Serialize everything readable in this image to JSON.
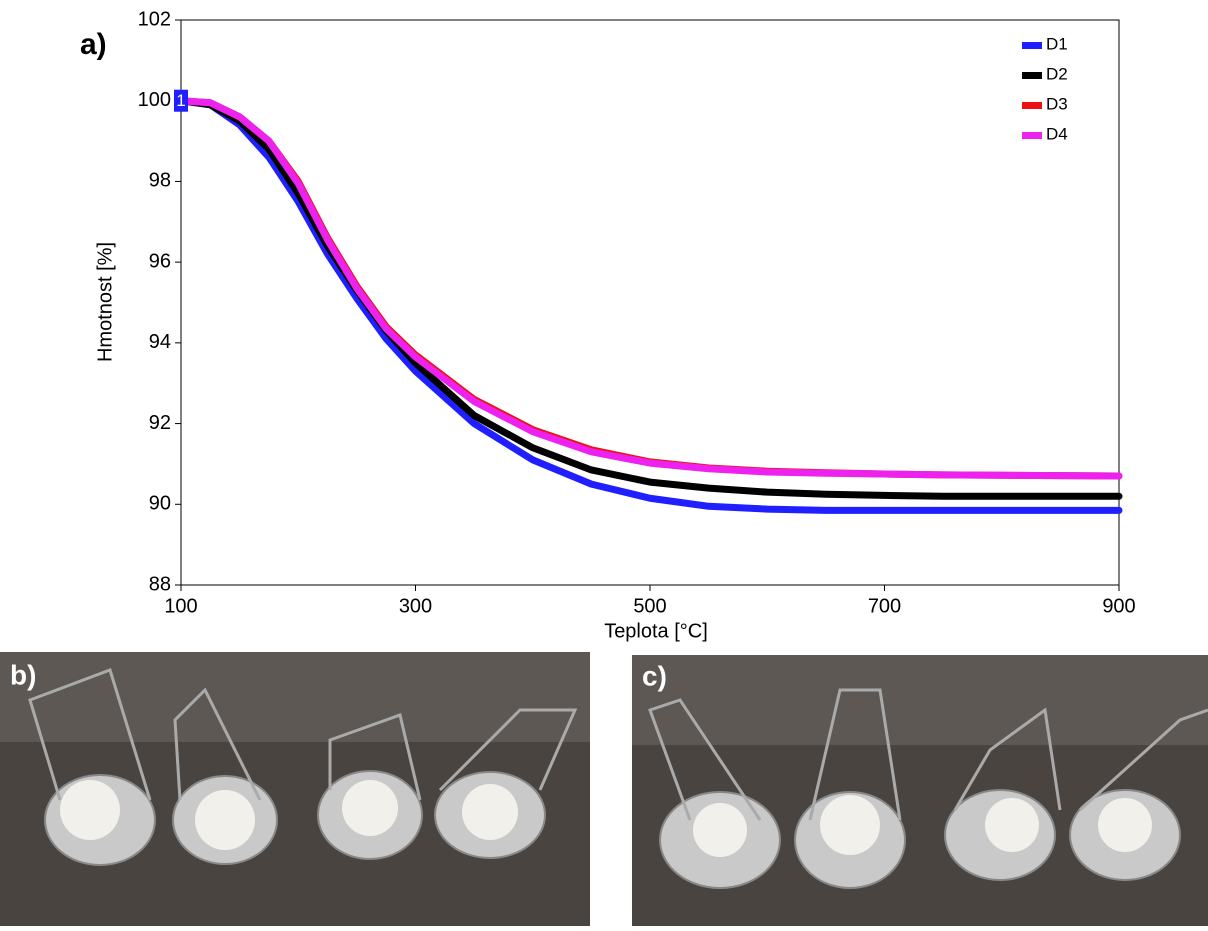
{
  "chart_data": {
    "type": "line",
    "panel_label": "a)",
    "annotation": "1",
    "x_label": "Teplota [°C]",
    "y_label": "Hmotnost [%]",
    "x": [
      100,
      125,
      150,
      175,
      200,
      225,
      250,
      275,
      300,
      350,
      400,
      450,
      500,
      550,
      600,
      650,
      700,
      750,
      800,
      850,
      900
    ],
    "series": [
      {
        "name": "D1",
        "color": "#1f1fff",
        "values": [
          100,
          99.9,
          99.4,
          98.6,
          97.5,
          96.2,
          95.1,
          94.1,
          93.3,
          92.0,
          91.1,
          90.5,
          90.15,
          89.95,
          89.88,
          89.85,
          89.85,
          89.85,
          89.85,
          89.85,
          89.85
        ]
      },
      {
        "name": "D2",
        "color": "#000000",
        "values": [
          100,
          99.9,
          99.5,
          98.8,
          97.7,
          96.4,
          95.3,
          94.3,
          93.5,
          92.2,
          91.4,
          90.85,
          90.55,
          90.4,
          90.3,
          90.25,
          90.22,
          90.2,
          90.2,
          90.2,
          90.2
        ]
      },
      {
        "name": "D3",
        "color": "#ee1111",
        "values": [
          100,
          99.95,
          99.6,
          99.0,
          98.0,
          96.6,
          95.4,
          94.4,
          93.7,
          92.6,
          91.85,
          91.35,
          91.05,
          90.9,
          90.82,
          90.78,
          90.75,
          90.73,
          90.72,
          90.71,
          90.7
        ]
      },
      {
        "name": "D4",
        "color": "#ee22ee",
        "values": [
          100,
          99.95,
          99.6,
          99.0,
          97.95,
          96.55,
          95.35,
          94.35,
          93.65,
          92.55,
          91.8,
          91.3,
          91.02,
          90.88,
          90.8,
          90.77,
          90.75,
          90.73,
          90.72,
          90.71,
          90.7
        ]
      }
    ],
    "xlim": [
      100,
      900
    ],
    "xticks": [
      100,
      300,
      500,
      700,
      900
    ],
    "ylim": [
      88,
      102
    ],
    "yticks": [
      88,
      90,
      92,
      94,
      96,
      98,
      100,
      102
    ],
    "legend": "top-right"
  },
  "photos": [
    {
      "label": "b)"
    },
    {
      "label": "c)"
    }
  ]
}
